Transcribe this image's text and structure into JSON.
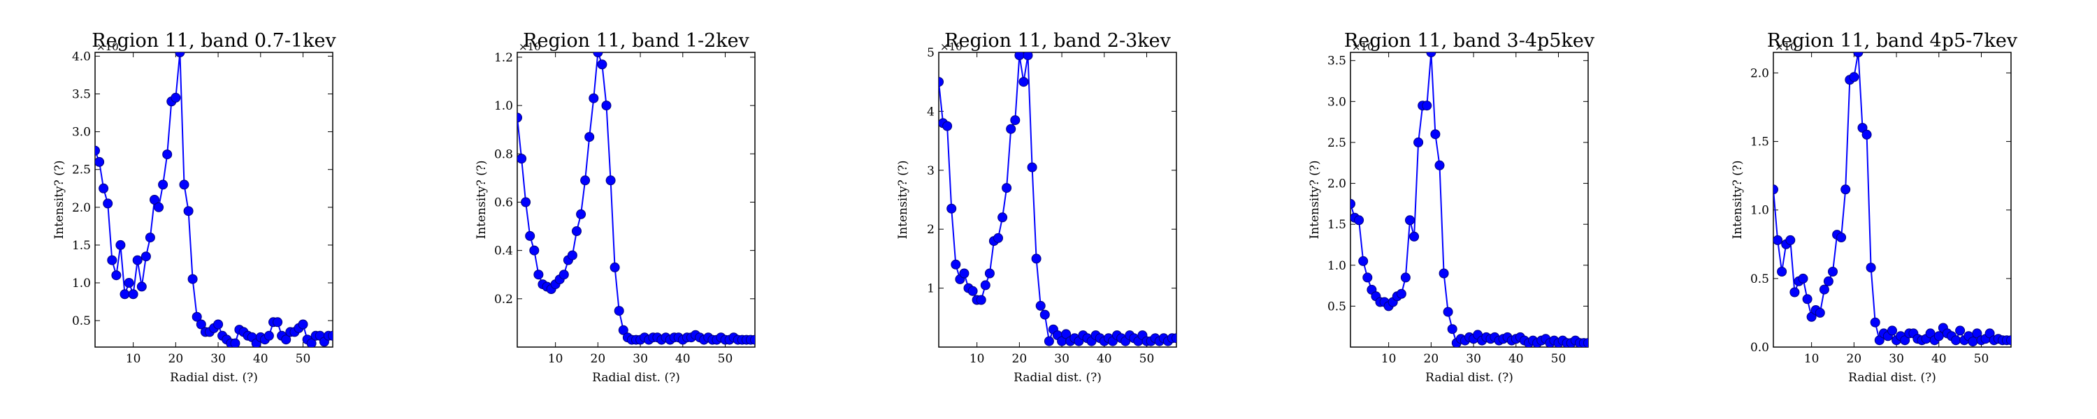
{
  "figure": {
    "series_color": "#0000ff",
    "marker_edge_color": "#000080"
  },
  "chart_data": [
    {
      "type": "line",
      "title": "Region 11, band 0.7-1kev",
      "xlabel": "Radial dist. (?)",
      "ylabel": "Intensity? (?)",
      "offset_label": "×10",
      "xlim": [
        1,
        57
      ],
      "ylim": [
        0.15,
        4.05
      ],
      "xticks": [
        10,
        20,
        30,
        40,
        50
      ],
      "yticks": [
        "0.5",
        "1.0",
        "1.5",
        "2.0",
        "2.5",
        "3.0",
        "3.5",
        "4.0"
      ],
      "grid": false,
      "legend": "none",
      "x": [
        1,
        2,
        3,
        4,
        5,
        6,
        7,
        8,
        9,
        10,
        11,
        12,
        13,
        14,
        15,
        16,
        17,
        18,
        19,
        20,
        21,
        22,
        23,
        24,
        25,
        26,
        27,
        28,
        29,
        30,
        31,
        32,
        33,
        34,
        35,
        36,
        37,
        38,
        39,
        40,
        41,
        42,
        43,
        44,
        45,
        46,
        47,
        48,
        49,
        50,
        51,
        52,
        53,
        54,
        55,
        56,
        57
      ],
      "y": [
        2.75,
        2.6,
        2.25,
        2.05,
        1.3,
        1.1,
        1.5,
        0.85,
        1.0,
        0.85,
        1.3,
        0.95,
        1.35,
        1.6,
        2.1,
        2.0,
        2.3,
        2.7,
        3.4,
        3.45,
        4.05,
        2.3,
        1.95,
        1.05,
        0.55,
        0.45,
        0.35,
        0.35,
        0.4,
        0.45,
        0.3,
        0.25,
        0.2,
        0.2,
        0.38,
        0.35,
        0.3,
        0.28,
        0.2,
        0.28,
        0.25,
        0.3,
        0.48,
        0.48,
        0.3,
        0.25,
        0.35,
        0.35,
        0.4,
        0.45,
        0.25,
        0.2,
        0.3,
        0.3,
        0.22,
        0.3,
        0.3
      ]
    },
    {
      "type": "line",
      "title": "Region 11, band 1-2kev",
      "xlabel": "Radial dist. (?)",
      "ylabel": "Intensity? (?)",
      "offset_label": "×10",
      "xlim": [
        1,
        57
      ],
      "ylim": [
        0.0,
        1.22
      ],
      "xticks": [
        10,
        20,
        30,
        40,
        50
      ],
      "yticks": [
        "0.2",
        "0.4",
        "0.6",
        "0.8",
        "1.0",
        "1.2"
      ],
      "grid": false,
      "legend": "none",
      "x": [
        1,
        2,
        3,
        4,
        5,
        6,
        7,
        8,
        9,
        10,
        11,
        12,
        13,
        14,
        15,
        16,
        17,
        18,
        19,
        20,
        21,
        22,
        23,
        24,
        25,
        26,
        27,
        28,
        29,
        30,
        31,
        32,
        33,
        34,
        35,
        36,
        37,
        38,
        39,
        40,
        41,
        42,
        43,
        44,
        45,
        46,
        47,
        48,
        49,
        50,
        51,
        52,
        53,
        54,
        55,
        56,
        57
      ],
      "y": [
        0.95,
        0.78,
        0.6,
        0.46,
        0.4,
        0.3,
        0.26,
        0.25,
        0.24,
        0.26,
        0.28,
        0.3,
        0.36,
        0.38,
        0.48,
        0.55,
        0.69,
        0.87,
        1.03,
        1.22,
        1.17,
        1.0,
        0.69,
        0.33,
        0.15,
        0.07,
        0.04,
        0.03,
        0.03,
        0.03,
        0.04,
        0.03,
        0.04,
        0.04,
        0.03,
        0.04,
        0.03,
        0.04,
        0.04,
        0.03,
        0.04,
        0.04,
        0.05,
        0.04,
        0.03,
        0.04,
        0.03,
        0.03,
        0.04,
        0.03,
        0.03,
        0.04,
        0.03,
        0.03,
        0.03,
        0.03,
        0.03
      ]
    },
    {
      "type": "line",
      "title": "Region 11, band 2-3kev",
      "xlabel": "Radial dist. (?)",
      "ylabel": "Intensity? (?)",
      "offset_label": "×10",
      "xlim": [
        1,
        57
      ],
      "ylim": [
        0.0,
        5.0
      ],
      "xticks": [
        10,
        20,
        30,
        40,
        50
      ],
      "yticks": [
        "1",
        "2",
        "3",
        "4",
        "5"
      ],
      "grid": false,
      "legend": "none",
      "x": [
        1,
        2,
        3,
        4,
        5,
        6,
        7,
        8,
        9,
        10,
        11,
        12,
        13,
        14,
        15,
        16,
        17,
        18,
        19,
        20,
        21,
        22,
        23,
        24,
        25,
        26,
        27,
        28,
        29,
        30,
        31,
        32,
        33,
        34,
        35,
        36,
        37,
        38,
        39,
        40,
        41,
        42,
        43,
        44,
        45,
        46,
        47,
        48,
        49,
        50,
        51,
        52,
        53,
        54,
        55,
        56,
        57
      ],
      "y": [
        4.5,
        3.8,
        3.75,
        2.35,
        1.4,
        1.15,
        1.25,
        1.0,
        0.95,
        0.8,
        0.8,
        1.05,
        1.25,
        1.8,
        1.85,
        2.2,
        2.7,
        3.7,
        3.85,
        4.95,
        4.5,
        4.95,
        3.05,
        1.5,
        0.7,
        0.55,
        0.1,
        0.3,
        0.2,
        0.1,
        0.22,
        0.1,
        0.15,
        0.1,
        0.2,
        0.15,
        0.1,
        0.2,
        0.15,
        0.1,
        0.15,
        0.1,
        0.2,
        0.15,
        0.1,
        0.2,
        0.15,
        0.1,
        0.2,
        0.1,
        0.1,
        0.15,
        0.1,
        0.15,
        0.1,
        0.15,
        0.15
      ]
    },
    {
      "type": "line",
      "title": "Region 11, band 3-4p5kev",
      "xlabel": "Radial dist. (?)",
      "ylabel": "Intensity? (?)",
      "offset_label": "×10",
      "xlim": [
        1,
        57
      ],
      "ylim": [
        0.0,
        3.6
      ],
      "xticks": [
        10,
        20,
        30,
        40,
        50
      ],
      "yticks": [
        "0.5",
        "1.0",
        "1.5",
        "2.0",
        "2.5",
        "3.0",
        "3.5"
      ],
      "grid": false,
      "legend": "none",
      "x": [
        1,
        2,
        3,
        4,
        5,
        6,
        7,
        8,
        9,
        10,
        11,
        12,
        13,
        14,
        15,
        16,
        17,
        18,
        19,
        20,
        21,
        22,
        23,
        24,
        25,
        26,
        27,
        28,
        29,
        30,
        31,
        32,
        33,
        34,
        35,
        36,
        37,
        38,
        39,
        40,
        41,
        42,
        43,
        44,
        45,
        46,
        47,
        48,
        49,
        50,
        51,
        52,
        53,
        54,
        55,
        56,
        57
      ],
      "y": [
        1.75,
        1.58,
        1.55,
        1.05,
        0.85,
        0.7,
        0.62,
        0.55,
        0.55,
        0.5,
        0.55,
        0.62,
        0.65,
        0.85,
        1.55,
        1.35,
        2.5,
        2.95,
        2.95,
        3.6,
        2.6,
        2.22,
        0.9,
        0.43,
        0.22,
        0.05,
        0.1,
        0.08,
        0.12,
        0.1,
        0.15,
        0.08,
        0.12,
        0.1,
        0.12,
        0.08,
        0.1,
        0.12,
        0.08,
        0.1,
        0.12,
        0.08,
        0.05,
        0.08,
        0.05,
        0.08,
        0.1,
        0.05,
        0.08,
        0.05,
        0.08,
        0.05,
        0.05,
        0.08,
        0.05,
        0.05,
        0.05
      ]
    },
    {
      "type": "line",
      "title": "Region 11, band 4p5-7kev",
      "xlabel": "Radial dist. (?)",
      "ylabel": "Intensity? (?)",
      "offset_label": "×10",
      "xlim": [
        1,
        57
      ],
      "ylim": [
        0.0,
        2.15
      ],
      "xticks": [
        10,
        20,
        30,
        40,
        50
      ],
      "yticks": [
        "0.0",
        "0.5",
        "1.0",
        "1.5",
        "2.0"
      ],
      "grid": false,
      "legend": "none",
      "x": [
        1,
        2,
        3,
        4,
        5,
        6,
        7,
        8,
        9,
        10,
        11,
        12,
        13,
        14,
        15,
        16,
        17,
        18,
        19,
        20,
        21,
        22,
        23,
        24,
        25,
        26,
        27,
        28,
        29,
        30,
        31,
        32,
        33,
        34,
        35,
        36,
        37,
        38,
        39,
        40,
        41,
        42,
        43,
        44,
        45,
        46,
        47,
        48,
        49,
        50,
        51,
        52,
        53,
        54,
        55,
        56,
        57
      ],
      "y": [
        1.15,
        0.78,
        0.55,
        0.75,
        0.78,
        0.4,
        0.48,
        0.5,
        0.35,
        0.22,
        0.27,
        0.25,
        0.42,
        0.48,
        0.55,
        0.82,
        0.8,
        1.15,
        1.95,
        1.97,
        2.15,
        1.6,
        1.55,
        0.58,
        0.18,
        0.05,
        0.1,
        0.08,
        0.12,
        0.05,
        0.08,
        0.05,
        0.1,
        0.1,
        0.06,
        0.05,
        0.06,
        0.1,
        0.05,
        0.08,
        0.14,
        0.1,
        0.08,
        0.05,
        0.12,
        0.05,
        0.08,
        0.04,
        0.1,
        0.05,
        0.06,
        0.1,
        0.05,
        0.06,
        0.05,
        0.05,
        0.05
      ]
    }
  ]
}
